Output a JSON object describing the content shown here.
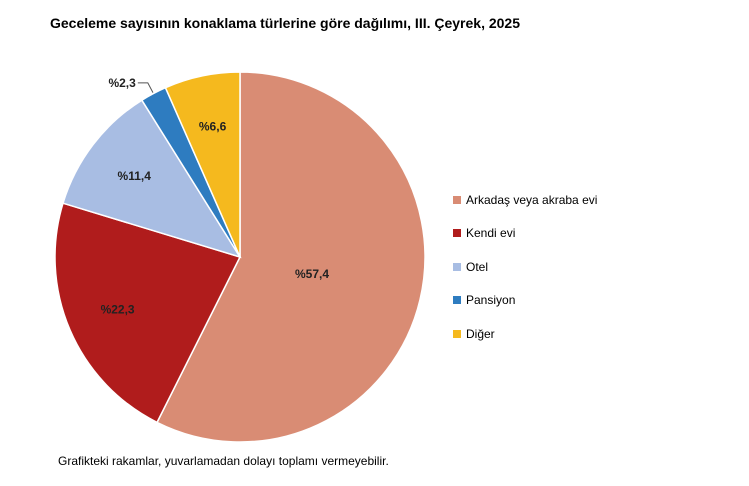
{
  "title": "Geceleme sayısının konaklama türlerine göre dağılımı, III. Çeyrek, 2025",
  "footnote": "Grafikteki rakamlar, yuvarlamadan dolayı toplamı vermeyebilir.",
  "chart_data": {
    "type": "pie",
    "start": "12 o'clock",
    "direction": "clockwise",
    "legend_position": "right",
    "slices": [
      {
        "name": "Arkadaş veya akraba evi",
        "value": 57.4,
        "label": "%57,4",
        "color": "#D98C74"
      },
      {
        "name": "Kendi evi",
        "value": 22.3,
        "label": "%22,3",
        "color": "#B01C1C"
      },
      {
        "name": "Otel",
        "value": 11.4,
        "label": "%11,4",
        "color": "#A8BDE3"
      },
      {
        "name": "Pansiyon",
        "value": 2.3,
        "label": "%2,3",
        "color": "#2E7CC0"
      },
      {
        "name": "Diğer",
        "value": 6.6,
        "label": "%6,6",
        "color": "#F5B91E"
      }
    ]
  }
}
